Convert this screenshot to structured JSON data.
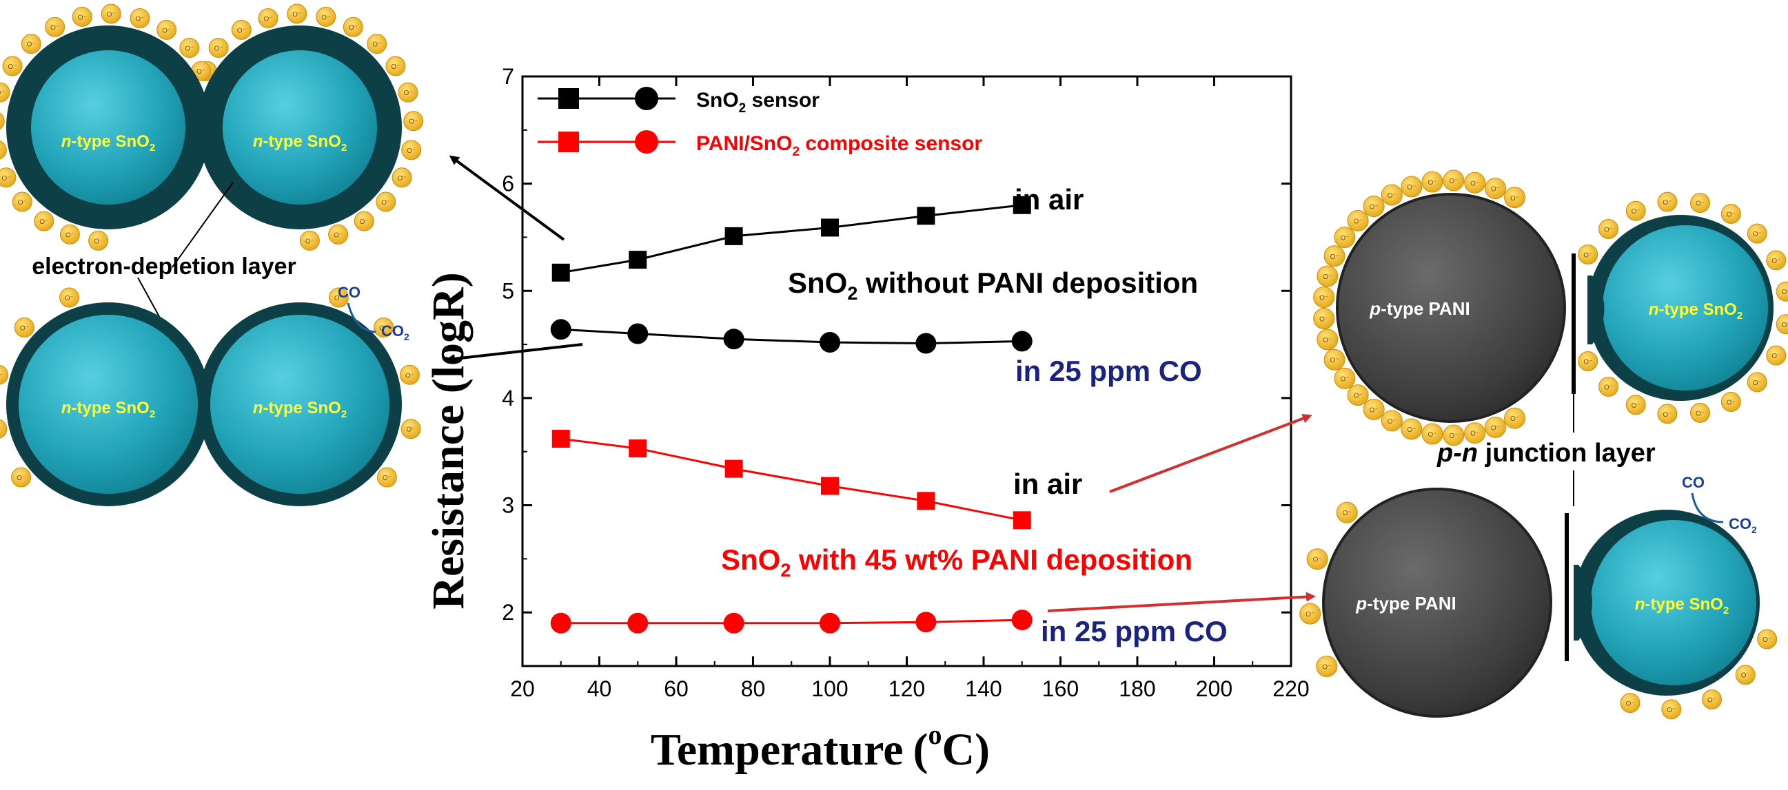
{
  "colors": {
    "sno2_series": "#000000",
    "pani_series": "#ff0000",
    "co_label": "#1a237e",
    "sno2_particle": "#2aa5b8",
    "sno2_shell": "#0d3f47",
    "pani_particle": "#4a4a4a",
    "oxygen_ion": "#f2b824",
    "core_label": "#ffff33"
  },
  "chart_data": {
    "type": "line",
    "xlabel_main": "Temperature",
    "xlabel_unit_open": "(",
    "xlabel_unit_sup": "o",
    "xlabel_unit_close": "C)",
    "ylabel": "Resistance (logR)",
    "xlim": [
      20,
      220
    ],
    "ylim": [
      1.5,
      7
    ],
    "xticks": [
      20,
      40,
      60,
      80,
      100,
      120,
      140,
      160,
      180,
      200,
      220
    ],
    "yticks": [
      2,
      3,
      4,
      5,
      6,
      7
    ],
    "x": [
      30,
      50,
      75,
      100,
      125,
      150
    ],
    "series": [
      {
        "name": "SnO2 sensor in air",
        "group": "sno2",
        "marker": "square",
        "values": [
          5.17,
          5.29,
          5.51,
          5.59,
          5.7,
          5.8
        ]
      },
      {
        "name": "SnO2 sensor in 25 ppm CO",
        "group": "sno2",
        "marker": "circle",
        "values": [
          4.64,
          4.6,
          4.55,
          4.52,
          4.51,
          4.53
        ]
      },
      {
        "name": "PANI/SnO2 composite sensor in air",
        "group": "pani",
        "marker": "square",
        "values": [
          3.62,
          3.53,
          3.34,
          3.18,
          3.04,
          2.86
        ]
      },
      {
        "name": "PANI/SnO2 composite sensor in 25 ppm CO",
        "group": "pani",
        "marker": "circle",
        "values": [
          1.9,
          1.9,
          1.9,
          1.9,
          1.91,
          1.93
        ]
      }
    ],
    "legend": [
      {
        "pre": "SnO",
        "sub": "2",
        "post": " sensor",
        "group": "sno2"
      },
      {
        "pre": "PANI/SnO",
        "sub": "2",
        "post": " composite sensor",
        "group": "pani"
      }
    ],
    "annotations": {
      "in_air_top": "in air",
      "sno2_title_pre": "SnO",
      "sno2_title_sub": "2",
      "sno2_title_post": " without PANI deposition",
      "co_top": "in 25 ppm CO",
      "in_air_bottom": "in air",
      "pani_title_pre": "SnO",
      "pani_title_sub": "2",
      "pani_title_post": " with 45 wt% PANI deposition",
      "co_bottom": "in 25 ppm CO"
    }
  },
  "schematic": {
    "left_top_core_1": {
      "italic": "n",
      "rest": "-type SnO",
      "sub": "2"
    },
    "left_top_core_2": {
      "italic": "n",
      "rest": "-type SnO",
      "sub": "2"
    },
    "left_bottom_core_1": {
      "italic": "n",
      "rest": "-type SnO",
      "sub": "2"
    },
    "left_bottom_core_2": {
      "italic": "n",
      "rest": "-type SnO",
      "sub": "2"
    },
    "depletion_label": "electron-depletion layer",
    "left_co": "CO",
    "left_co2_pre": "CO",
    "left_co2_sub": "2",
    "right_top_pani": {
      "italic": "p",
      "rest": "-type PANI"
    },
    "right_top_sno2": {
      "italic": "n",
      "rest": "-type SnO",
      "sub": "2"
    },
    "right_bottom_pani": {
      "italic": "p",
      "rest": "-type PANI"
    },
    "right_bottom_sno2": {
      "italic": "n",
      "rest": "-type SnO",
      "sub": "2"
    },
    "junction_italic": "p-n",
    "junction_rest": " junction layer",
    "right_co": "CO",
    "right_co2_pre": "CO",
    "right_co2_sub": "2",
    "ion_label": "O⁻"
  }
}
